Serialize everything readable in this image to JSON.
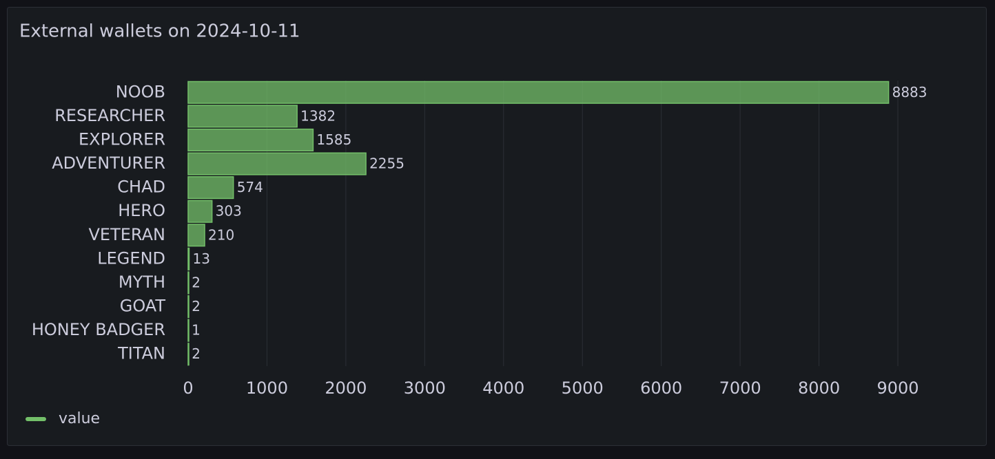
{
  "chart_data": {
    "type": "hbar",
    "title": "External wallets on 2024-10-11",
    "categories": [
      "NOOB",
      "RESEARCHER",
      "EXPLORER",
      "ADVENTURER",
      "CHAD",
      "HERO",
      "VETERAN",
      "LEGEND",
      "MYTH",
      "GOAT",
      "HONEY BADGER",
      "TITAN"
    ],
    "series": [
      {
        "name": "value",
        "color": "#73bf69",
        "values": [
          8883,
          1382,
          1585,
          2255,
          574,
          303,
          210,
          13,
          2,
          2,
          1,
          2
        ]
      }
    ],
    "xlim": [
      0,
      9000
    ],
    "xticks": [
      0,
      1000,
      2000,
      3000,
      4000,
      5000,
      6000,
      7000,
      8000,
      9000
    ],
    "grid": true,
    "legend": "bottom-left"
  }
}
